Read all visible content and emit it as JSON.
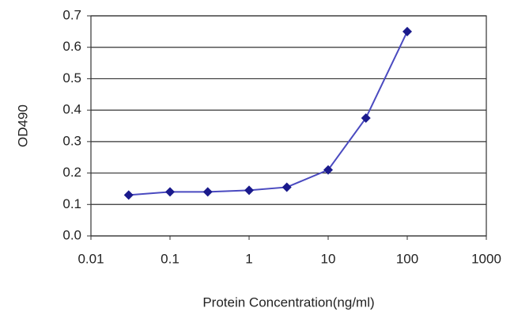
{
  "chart_data": {
    "type": "line",
    "x_label": "Protein Concentration(ng/ml)",
    "y_label": "OD490",
    "xscale": "log",
    "x": [
      0.03,
      0.1,
      0.3,
      1,
      3,
      10,
      30,
      100
    ],
    "series": [
      {
        "color": "#1a1a8c",
        "line_color": "#4a4ac0",
        "values": [
          0.13,
          0.14,
          0.14,
          0.145,
          0.155,
          0.21,
          0.375,
          0.65
        ]
      }
    ],
    "xlim": [
      0.01,
      1000
    ],
    "xticks": [
      0.01,
      0.1,
      1,
      10,
      100,
      1000
    ],
    "ylim": [
      0,
      0.7
    ],
    "yticks": [
      {
        "value": 0,
        "label": "0.0"
      },
      0.1,
      0.2,
      0.3,
      0.4,
      0.5,
      0.6,
      0.7
    ],
    "grid": true
  }
}
